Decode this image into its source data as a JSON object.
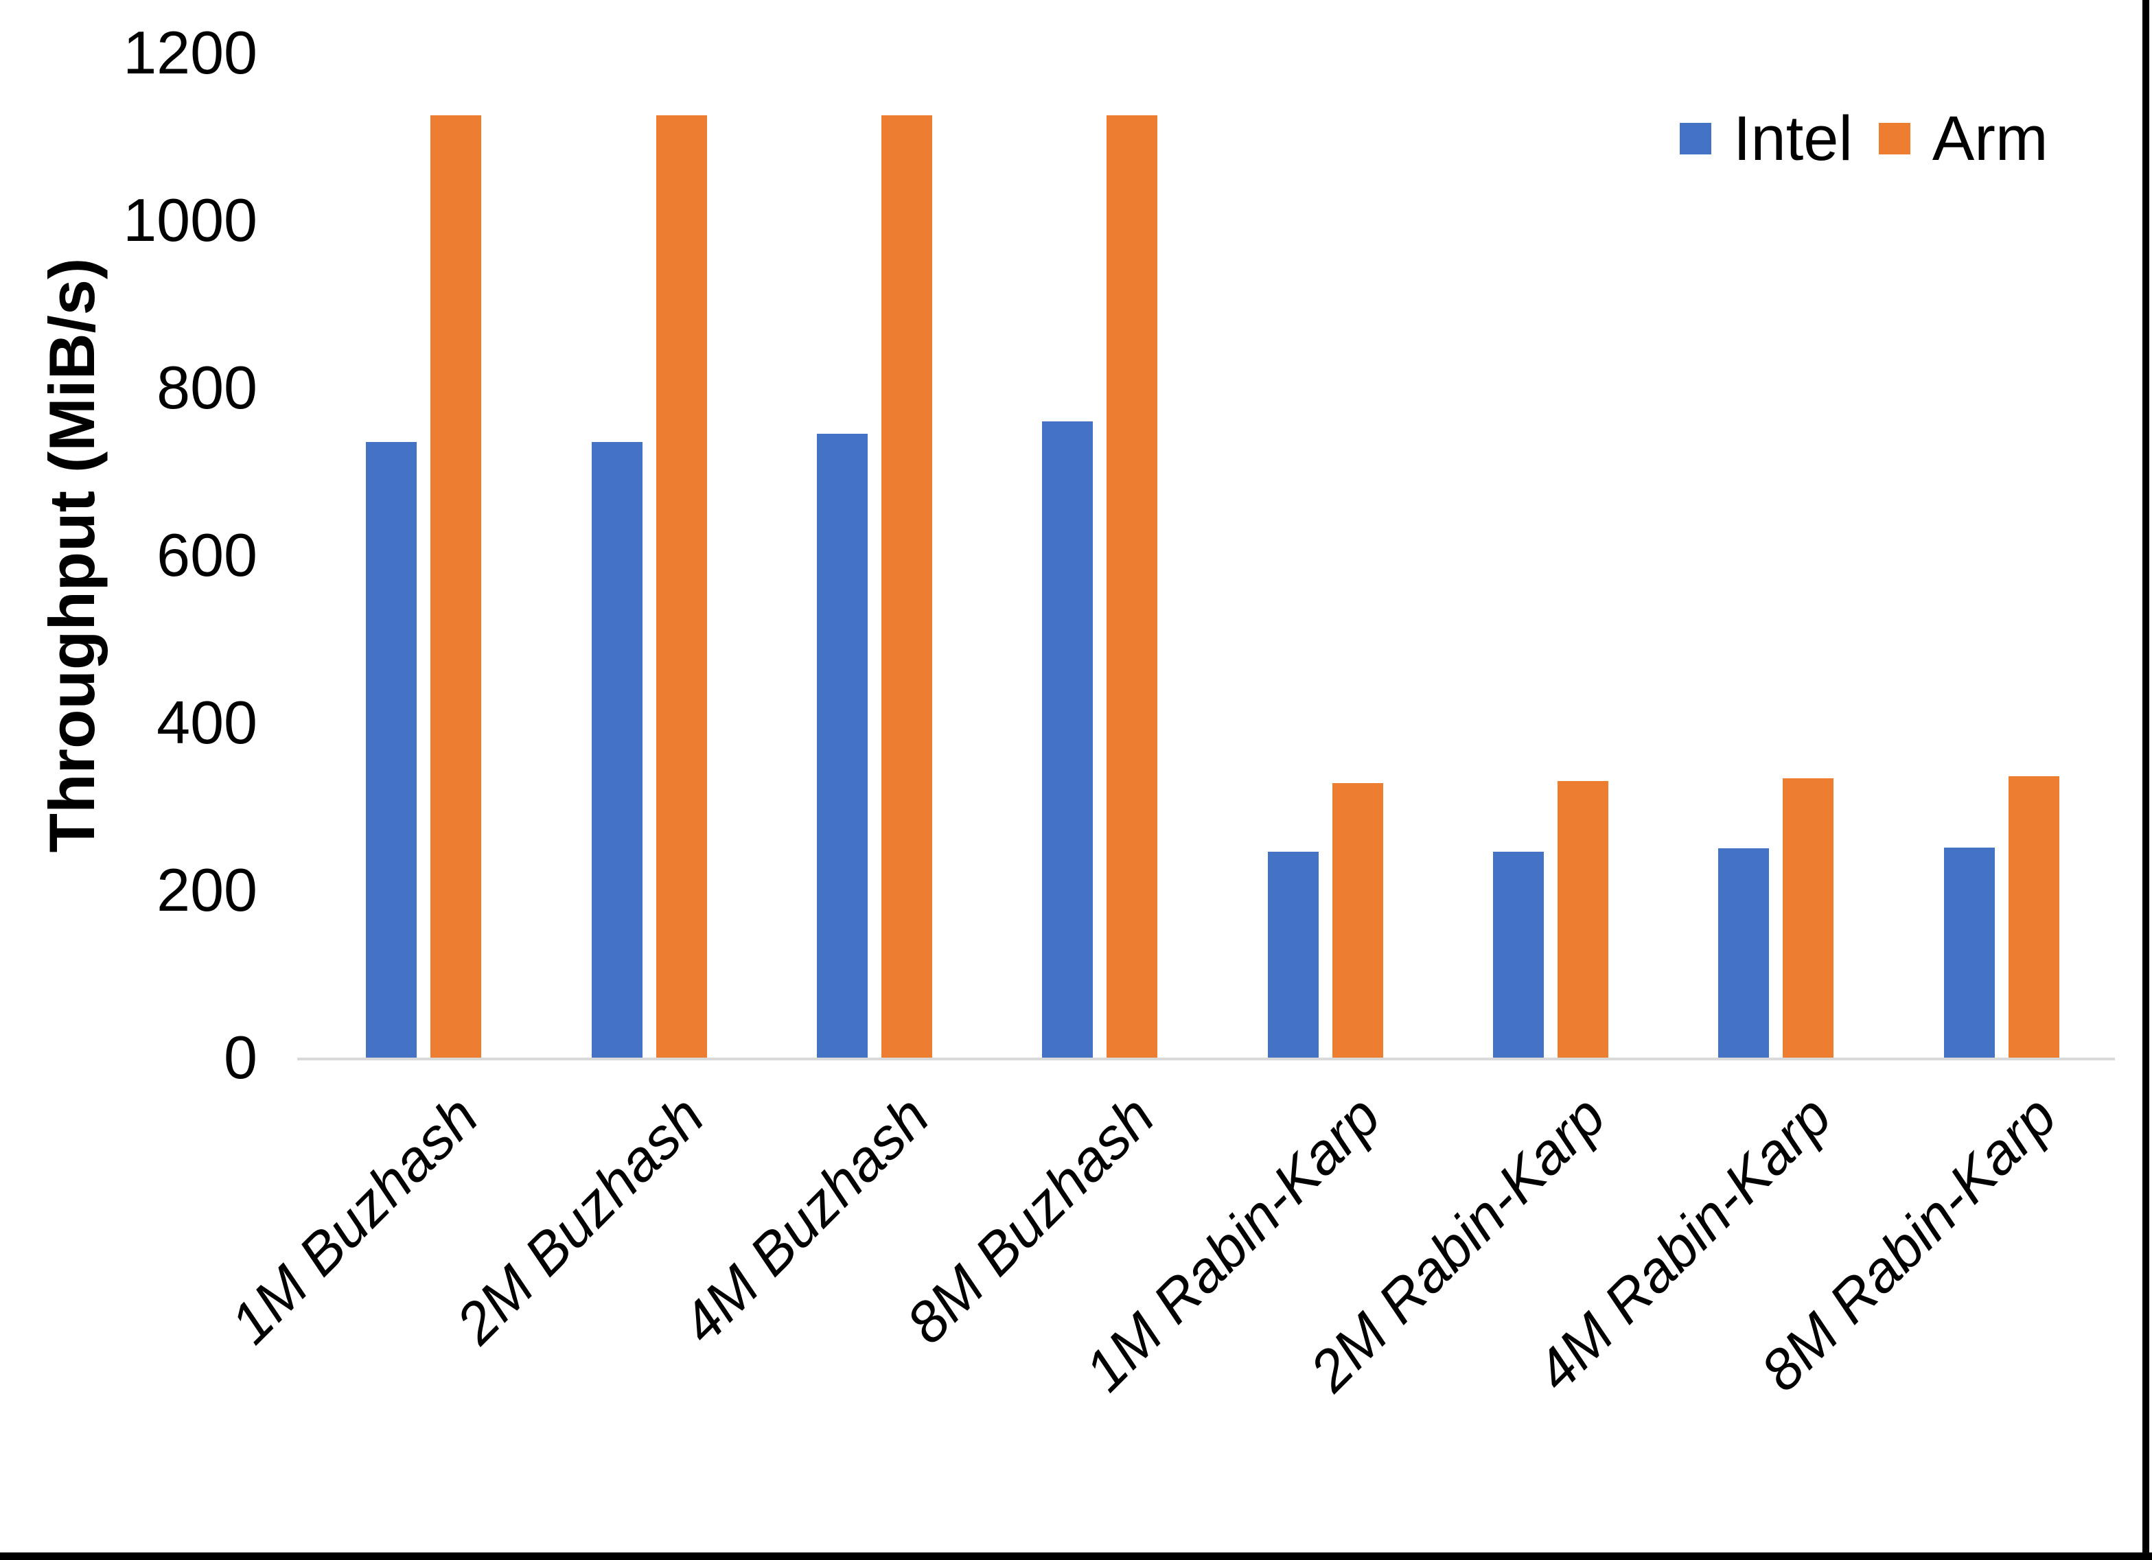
{
  "chart_data": {
    "type": "bar",
    "title": "",
    "xlabel": "",
    "ylabel": "Throughput (MiB/s)",
    "categories": [
      "1M Buzhash",
      "2M Buzhash",
      "4M Buzhash",
      "8M Buzhash",
      "1M Rabin-Karp",
      "2M Rabin-Karp",
      "4M Rabin-Karp",
      "8M Rabin-Karp"
    ],
    "series": [
      {
        "name": "Intel",
        "color": "#4472C4",
        "values": [
          735,
          735,
          745,
          760,
          246,
          246,
          250,
          251
        ]
      },
      {
        "name": "Arm",
        "color": "#ED7D31",
        "values": [
          1125,
          1125,
          1125,
          1125,
          328,
          330,
          334,
          336
        ]
      }
    ],
    "yticks": [
      0,
      200,
      400,
      600,
      800,
      1000,
      1200
    ],
    "ylim": [
      0,
      1200
    ],
    "grid": false,
    "legend_position": "top-right"
  },
  "colors": {
    "background": "#FFFFFF",
    "axis_line": "#D9D9D9",
    "text": "#000000",
    "window_border": "#000000"
  }
}
